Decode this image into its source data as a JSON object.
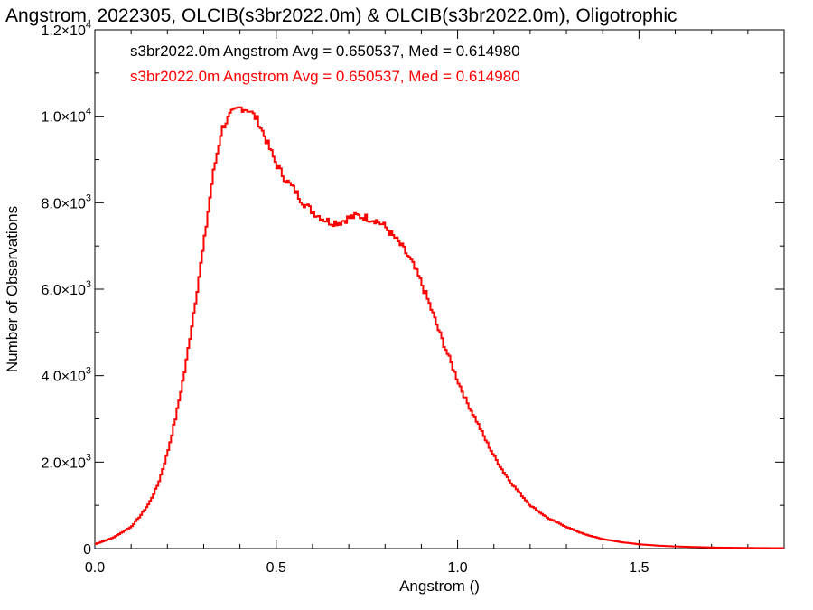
{
  "chart_data": {
    "type": "step",
    "title": "Angstrom, 2022305, OLCIB(s3br2022.0m) & OLCIB(s3br2022.0m), Oligotrophic",
    "xlabel": "Angstrom ()",
    "ylabel": "Number of Observations",
    "xlim": [
      0.0,
      1.9
    ],
    "ylim": [
      0,
      12000
    ],
    "x_ticks": [
      {
        "value": 0.0,
        "label": "0.0"
      },
      {
        "value": 0.5,
        "label": "0.5"
      },
      {
        "value": 1.0,
        "label": "1.0"
      },
      {
        "value": 1.5,
        "label": "1.5"
      }
    ],
    "y_ticks": [
      {
        "value": 0,
        "mant": "0",
        "exp": ""
      },
      {
        "value": 2000,
        "mant": "2.0×10",
        "exp": "3"
      },
      {
        "value": 4000,
        "mant": "4.0×10",
        "exp": "3"
      },
      {
        "value": 6000,
        "mant": "6.0×10",
        "exp": "3"
      },
      {
        "value": 8000,
        "mant": "8.0×10",
        "exp": "3"
      },
      {
        "value": 10000,
        "mant": "1.0×10",
        "exp": "4"
      },
      {
        "value": 12000,
        "mant": "1.2×10",
        "exp": "4"
      }
    ],
    "legend": [
      {
        "text": "s3br2022.0m Angstrom Avg = 0.650537, Med = 0.614980",
        "color": "#000000"
      },
      {
        "text": "s3br2022.0m Angstrom Avg = 0.650537, Med = 0.614980",
        "color": "#ff0000"
      }
    ],
    "series": [
      {
        "color": "#ff0000",
        "x": [
          0.0,
          0.05,
          0.1,
          0.125,
          0.15,
          0.175,
          0.2,
          0.225,
          0.25,
          0.275,
          0.3,
          0.325,
          0.35,
          0.375,
          0.4,
          0.425,
          0.45,
          0.475,
          0.5,
          0.525,
          0.55,
          0.575,
          0.6,
          0.625,
          0.65,
          0.675,
          0.7,
          0.725,
          0.75,
          0.775,
          0.8,
          0.825,
          0.85,
          0.875,
          0.9,
          0.925,
          0.95,
          0.975,
          1.0,
          1.025,
          1.05,
          1.075,
          1.1,
          1.125,
          1.15,
          1.175,
          1.2,
          1.25,
          1.3,
          1.35,
          1.4,
          1.45,
          1.5,
          1.55,
          1.6,
          1.7,
          1.8,
          1.9
        ],
        "y": [
          100,
          250,
          500,
          750,
          1050,
          1500,
          2200,
          3100,
          4200,
          5600,
          7000,
          8600,
          9700,
          10050,
          10200,
          10150,
          9900,
          9400,
          8900,
          8550,
          8300,
          8000,
          7800,
          7650,
          7550,
          7550,
          7650,
          7700,
          7650,
          7600,
          7450,
          7200,
          6950,
          6600,
          6150,
          5600,
          5000,
          4450,
          3900,
          3400,
          3000,
          2550,
          2150,
          1800,
          1500,
          1250,
          1000,
          700,
          500,
          330,
          220,
          150,
          100,
          70,
          50,
          25,
          15,
          10
        ]
      }
    ]
  }
}
